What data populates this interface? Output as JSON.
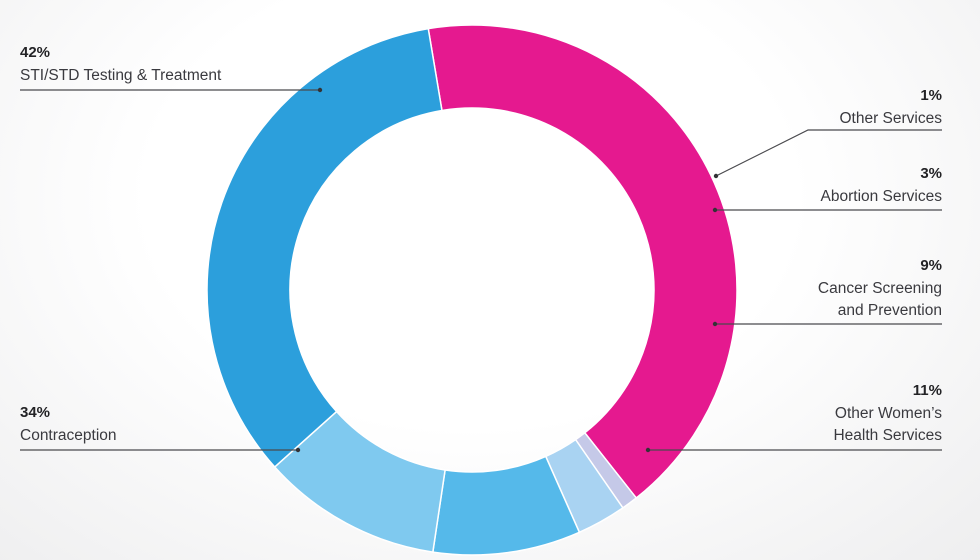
{
  "chart_data": {
    "type": "pie",
    "donut": true,
    "title": "",
    "categories": [
      "STI/STD Testing & Treatment",
      "Other Services",
      "Abortion Services",
      "Cancer Screening and Prevention",
      "Other Women’s Health Services",
      "Contraception"
    ],
    "values": [
      42,
      1,
      3,
      9,
      11,
      34
    ],
    "value_labels": [
      "42%",
      "1%",
      "3%",
      "9%",
      "11%",
      "34%"
    ],
    "label_lines": [
      [
        "STI/STD Testing & Treatment"
      ],
      [
        "Other Services"
      ],
      [
        "Abortion Services"
      ],
      [
        "Cancer Screening",
        "and Prevention"
      ],
      [
        "Other Women’s",
        "Health Services"
      ],
      [
        "Contraception"
      ]
    ],
    "label_side": [
      "left",
      "right",
      "right",
      "right",
      "right",
      "left"
    ],
    "colors": [
      "#e5198f",
      "#c5c9e8",
      "#a9d3f2",
      "#55b9ea",
      "#7fc9ef",
      "#2c9fdc"
    ],
    "legend": "callout labels"
  }
}
